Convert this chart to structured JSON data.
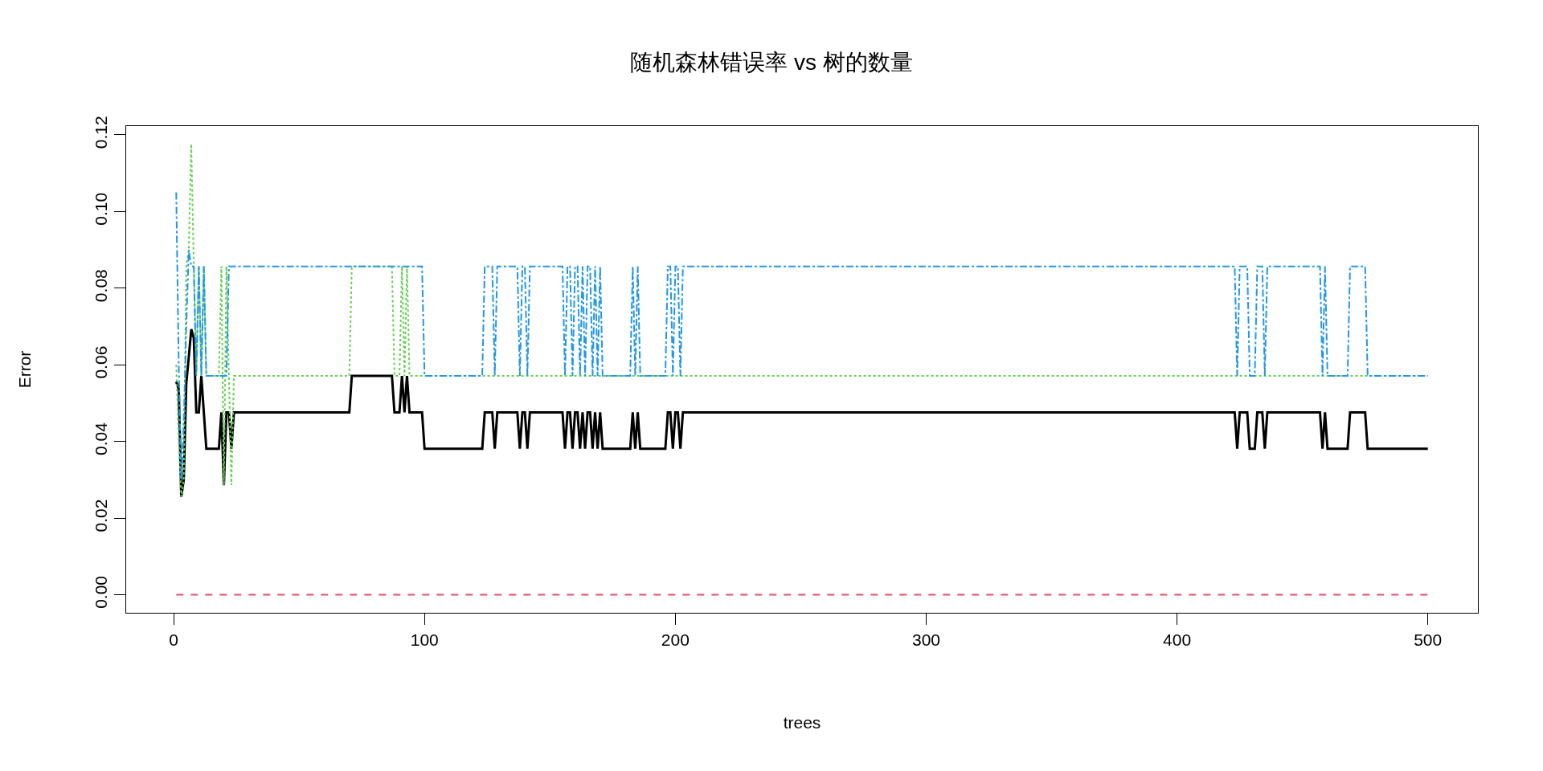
{
  "chart_data": {
    "type": "line",
    "title": "随机森林错误率 vs 树的数量",
    "xlabel": "trees",
    "ylabel": "Error",
    "xlim": [
      -18.96,
      519.96
    ],
    "ylim": [
      -0.0047,
      0.1223
    ],
    "xticks": [
      0,
      100,
      200,
      300,
      400,
      500
    ],
    "yticks": [
      {
        "value": 0,
        "label": "0.00"
      },
      {
        "value": 0.02,
        "label": "0.02"
      },
      {
        "value": 0.04,
        "label": "0.04"
      },
      {
        "value": 0.06,
        "label": "0.06"
      },
      {
        "value": 0.08,
        "label": "0.08"
      },
      {
        "value": 0.1,
        "label": "0.10"
      },
      {
        "value": 0.12,
        "label": "0.12"
      }
    ],
    "grid": false,
    "marker": "none",
    "series": [
      {
        "color": "#000000",
        "line_style": "solid",
        "x": [
          1,
          2,
          3,
          4,
          5,
          6,
          7,
          8,
          9,
          10,
          11,
          12,
          13,
          18,
          19,
          20,
          21,
          22,
          23,
          24,
          70,
          71,
          87,
          88,
          90,
          91,
          92,
          93,
          94,
          99,
          100,
          123,
          124,
          127,
          128,
          129,
          137,
          138,
          139,
          140,
          141,
          142,
          155,
          156,
          157,
          158,
          159,
          160,
          161,
          162,
          163,
          164,
          165,
          166,
          167,
          168,
          169,
          170,
          171,
          172,
          182,
          183,
          184,
          185,
          186,
          196,
          197,
          198,
          199,
          200,
          201,
          202,
          203,
          422,
          423,
          424,
          425,
          428,
          429,
          431,
          432,
          434,
          435,
          436,
          456,
          457,
          458,
          459,
          460,
          468,
          469,
          475,
          476,
          500
        ],
        "values": [
          0.0556,
          0.0536,
          0.0256,
          0.03,
          0.055,
          0.062,
          0.0693,
          0.067,
          0.0476,
          0.0476,
          0.0571,
          0.0476,
          0.0381,
          0.0381,
          0.0476,
          0.0286,
          0.0476,
          0.0476,
          0.0381,
          0.0476,
          0.0476,
          0.0571,
          0.0571,
          0.0476,
          0.0476,
          0.0571,
          0.0476,
          0.0571,
          0.0476,
          0.0476,
          0.0381,
          0.0381,
          0.0476,
          0.0476,
          0.0381,
          0.0476,
          0.0476,
          0.0381,
          0.0476,
          0.0476,
          0.0381,
          0.0476,
          0.0476,
          0.0381,
          0.0476,
          0.0476,
          0.0381,
          0.0476,
          0.0476,
          0.0381,
          0.0476,
          0.0381,
          0.0476,
          0.0476,
          0.0381,
          0.0476,
          0.0381,
          0.0476,
          0.0381,
          0.0381,
          0.0381,
          0.0476,
          0.0381,
          0.0476,
          0.0381,
          0.0381,
          0.0476,
          0.0476,
          0.0381,
          0.0476,
          0.0476,
          0.0381,
          0.0476,
          0.0476,
          0.0476,
          0.0381,
          0.0476,
          0.0476,
          0.0381,
          0.0381,
          0.0476,
          0.0476,
          0.0381,
          0.0476,
          0.0476,
          0.0476,
          0.0381,
          0.0476,
          0.0381,
          0.0381,
          0.0476,
          0.0476,
          0.0381,
          0.0381
        ]
      },
      {
        "color": "#df536b",
        "line_style": "dashed",
        "x": [
          1,
          500
        ],
        "values": [
          0,
          0
        ]
      },
      {
        "color": "#61d04f",
        "line_style": "dotted",
        "x": [
          1,
          2,
          3,
          4,
          5,
          6,
          7,
          8,
          9,
          10,
          11,
          12,
          13,
          18,
          19,
          20,
          21,
          22,
          23,
          24,
          70,
          71,
          87,
          88,
          90,
          91,
          92,
          93,
          94,
          500
        ],
        "values": [
          0.06,
          0.04,
          0.0256,
          0.03,
          0.0857,
          0.09,
          0.1176,
          0.0857,
          0.0571,
          0.0857,
          0.0571,
          0.0857,
          0.0571,
          0.0571,
          0.0857,
          0.0286,
          0.0857,
          0.0571,
          0.0286,
          0.0571,
          0.0571,
          0.0857,
          0.0857,
          0.0571,
          0.0571,
          0.0857,
          0.0571,
          0.0857,
          0.0571,
          0.0571
        ]
      },
      {
        "color": "#2297e6",
        "line_style": "dashdot",
        "x": [
          1,
          2,
          3,
          4,
          5,
          6,
          7,
          8,
          9,
          10,
          11,
          12,
          13,
          21,
          22,
          99,
          100,
          123,
          124,
          127,
          128,
          129,
          137,
          138,
          139,
          140,
          141,
          142,
          155,
          156,
          157,
          158,
          159,
          160,
          161,
          162,
          163,
          164,
          165,
          166,
          167,
          168,
          169,
          170,
          171,
          172,
          182,
          183,
          184,
          185,
          186,
          196,
          197,
          198,
          199,
          200,
          201,
          202,
          203,
          422,
          423,
          424,
          425,
          428,
          429,
          431,
          432,
          434,
          435,
          436,
          456,
          457,
          458,
          459,
          460,
          468,
          469,
          475,
          476,
          500
        ],
        "values": [
          0.105,
          0.06,
          0.03,
          0.045,
          0.07,
          0.09,
          0.0857,
          0.0857,
          0.0571,
          0.0857,
          0.0571,
          0.0857,
          0.0571,
          0.0571,
          0.0857,
          0.0857,
          0.0571,
          0.0571,
          0.0857,
          0.0857,
          0.0571,
          0.0857,
          0.0857,
          0.0571,
          0.0857,
          0.0857,
          0.0571,
          0.0857,
          0.0857,
          0.0571,
          0.0857,
          0.0857,
          0.0571,
          0.0857,
          0.0857,
          0.0571,
          0.0857,
          0.0571,
          0.0857,
          0.0857,
          0.0571,
          0.0857,
          0.0571,
          0.0857,
          0.0571,
          0.0571,
          0.0571,
          0.0857,
          0.0571,
          0.0857,
          0.0571,
          0.0571,
          0.0857,
          0.0857,
          0.0571,
          0.0857,
          0.0857,
          0.0571,
          0.0857,
          0.0857,
          0.0857,
          0.0571,
          0.0857,
          0.0857,
          0.0571,
          0.0571,
          0.0857,
          0.0857,
          0.0571,
          0.0857,
          0.0857,
          0.0857,
          0.0571,
          0.0857,
          0.0571,
          0.0571,
          0.0857,
          0.0857,
          0.0571,
          0.0571
        ]
      }
    ]
  }
}
